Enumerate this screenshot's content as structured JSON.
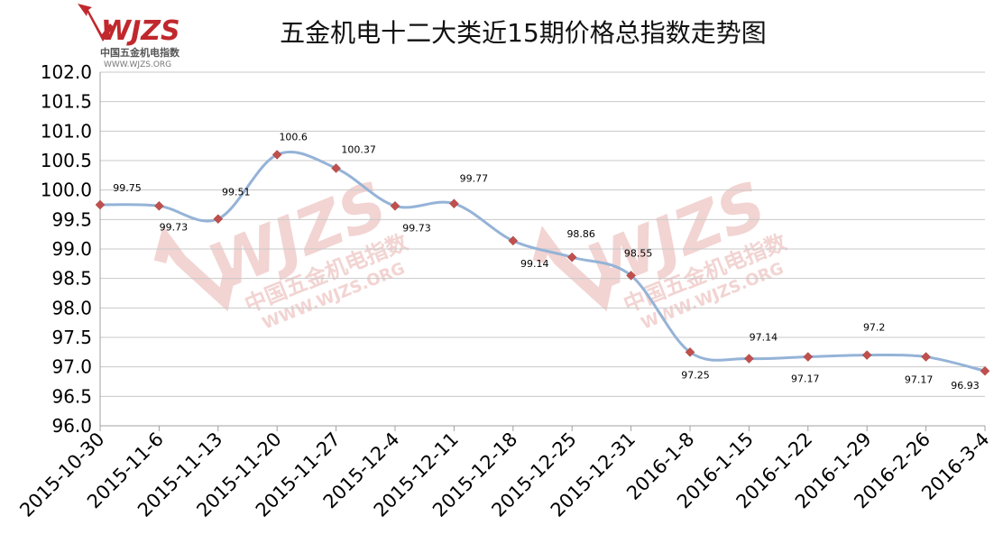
{
  "colors": {
    "line": "#95B3D7",
    "marker": "#C0504D",
    "grid": "#C8C8C8",
    "axis": "#A0A0A0",
    "logo": "#C0282D",
    "watermark": "#F2D4D2"
  },
  "logo": {
    "main": "WJZS",
    "cn": "中国五金机电指数",
    "url": "WWW.WJZS.ORG"
  },
  "watermark": {
    "main": "WJZS",
    "cn": "中国五金机电指数",
    "url": "WWW.WJZS.ORG"
  },
  "chart_data": {
    "type": "line",
    "title": "五金机电十二大类近15期价格总指数走势图",
    "xlabel": "",
    "ylabel": "",
    "ylim": [
      96.0,
      102.0
    ],
    "ytick_step": 0.5,
    "yticks": [
      "96.0",
      "96.5",
      "97.0",
      "97.5",
      "98.0",
      "98.5",
      "99.0",
      "99.5",
      "100.0",
      "100.5",
      "101.0",
      "101.5",
      "102.0"
    ],
    "grid": true,
    "legend": "none",
    "categories": [
      "2015-10-30",
      "2015-11-6",
      "2015-11-13",
      "2015-11-20",
      "2015-11-27",
      "2015-12-4",
      "2015-12-11",
      "2015-12-18",
      "2015-12-25",
      "2015-12-31",
      "2016-1-8",
      "2016-1-15",
      "2016-1-22",
      "2016-1-29",
      "2016-2-26",
      "2016-3-4"
    ],
    "values": [
      99.75,
      99.73,
      99.51,
      100.6,
      100.37,
      99.73,
      99.77,
      99.14,
      98.86,
      98.55,
      97.25,
      97.14,
      97.17,
      97.2,
      97.17,
      96.93
    ],
    "data_labels": [
      "99.75",
      "99.73",
      "99.51",
      "100.6",
      "100.37",
      "99.73",
      "99.77",
      "99.14",
      "98.86",
      "98.55",
      "97.25",
      "97.14",
      "97.17",
      "97.2",
      "97.17",
      "96.93"
    ]
  }
}
